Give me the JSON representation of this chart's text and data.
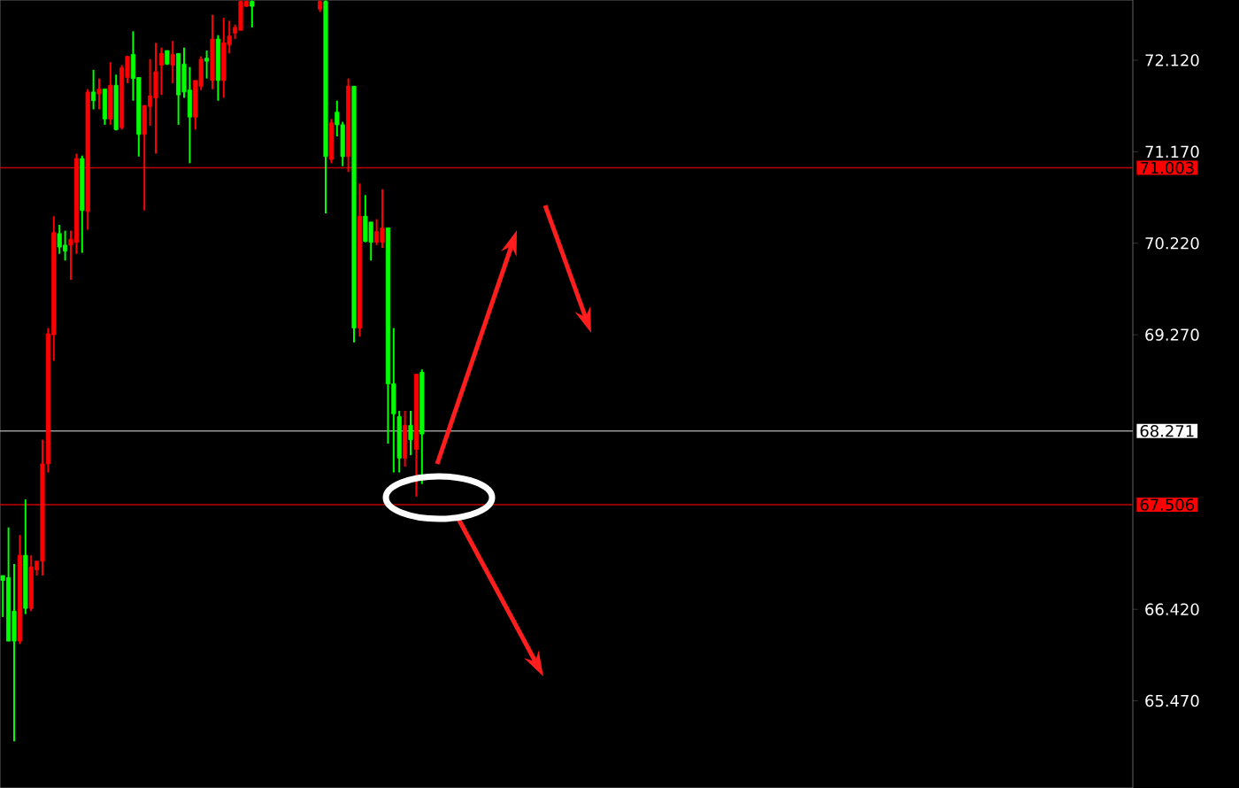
{
  "chart_data": {
    "type": "candlestick",
    "categories": [
      null,
      null,
      null,
      null,
      null,
      null,
      null,
      null,
      null,
      null,
      null,
      null,
      null,
      null,
      null,
      null,
      null,
      null,
      null,
      null,
      null,
      null,
      null,
      null,
      null,
      null,
      null,
      null,
      null,
      null,
      null,
      null,
      null,
      null,
      null,
      null,
      null,
      null,
      null,
      null,
      null,
      null,
      null,
      null,
      null,
      null,
      null,
      null,
      null,
      null,
      null,
      null,
      null,
      null,
      null,
      null,
      null,
      null,
      null,
      null,
      null,
      null,
      null,
      null,
      null,
      null,
      null,
      null,
      null,
      null,
      null,
      null,
      null,
      null,
      null,
      null,
      null,
      null,
      null,
      null,
      null,
      null,
      null,
      null,
      null,
      null,
      null,
      null,
      null,
      null,
      null,
      null,
      null,
      null,
      null,
      null,
      null,
      null,
      null,
      null,
      null,
      null,
      null,
      null,
      null,
      null,
      null,
      null,
      null,
      null,
      null,
      null,
      null,
      null,
      null,
      null,
      null,
      null,
      null,
      null,
      null,
      null,
      null,
      null,
      null,
      null,
      null,
      null,
      null,
      null,
      null,
      null,
      null,
      null,
      null,
      null,
      null,
      null,
      null,
      null,
      null,
      null,
      null,
      null,
      null,
      null,
      null,
      null,
      null,
      null,
      null,
      null,
      null,
      null,
      null,
      null,
      null,
      null,
      null,
      null,
      null,
      null,
      null,
      null,
      null,
      null,
      null,
      null,
      null,
      null,
      null,
      null,
      null,
      null,
      null,
      null,
      null,
      null,
      null,
      null,
      null,
      null,
      null,
      null,
      null,
      null,
      null,
      null,
      null,
      null,
      null,
      null,
      null,
      null,
      null,
      null,
      null,
      null,
      null,
      null
    ],
    "ohlc": [
      [
        66.77,
        66.77,
        66.34,
        66.72
      ],
      [
        66.75,
        67.27,
        66.09,
        66.09
      ],
      [
        66.4,
        66.89,
        65.05,
        66.09
      ],
      [
        66.09,
        67.19,
        66.06,
        66.98
      ],
      [
        66.98,
        67.56,
        66.37,
        66.43
      ],
      [
        66.43,
        66.98,
        66.4,
        66.86
      ],
      [
        66.83,
        66.92,
        66.77,
        66.92
      ],
      [
        66.92,
        68.18,
        66.77,
        67.93
      ],
      [
        67.93,
        69.34,
        67.84,
        69.28
      ],
      [
        69.27,
        70.5,
        69.0,
        70.33
      ],
      [
        70.32,
        70.41,
        70.11,
        70.18
      ],
      [
        70.2,
        70.35,
        70.04,
        70.14
      ],
      [
        70.2,
        70.35,
        69.84,
        70.26
      ],
      [
        70.23,
        71.15,
        70.11,
        71.1
      ],
      [
        71.1,
        71.13,
        70.12,
        70.56
      ],
      [
        70.55,
        71.82,
        70.36,
        71.79
      ],
      [
        71.79,
        72.02,
        71.61,
        71.7
      ],
      [
        71.77,
        71.93,
        71.61,
        71.82
      ],
      [
        71.82,
        71.82,
        71.45,
        71.51
      ],
      [
        71.51,
        72.1,
        71.45,
        71.86
      ],
      [
        71.86,
        71.97,
        71.39,
        71.4
      ],
      [
        71.42,
        72.07,
        71.4,
        72.04
      ],
      [
        71.94,
        72.16,
        71.88,
        72.16
      ],
      [
        72.18,
        72.42,
        71.7,
        71.93
      ],
      [
        71.94,
        71.94,
        71.12,
        71.35
      ],
      [
        71.35,
        71.65,
        70.56,
        71.65
      ],
      [
        71.64,
        72.13,
        71.44,
        71.75
      ],
      [
        71.73,
        72.3,
        71.15,
        72.0
      ],
      [
        72.07,
        72.25,
        71.76,
        72.19
      ],
      [
        72.22,
        72.22,
        72.07,
        72.08
      ],
      [
        72.07,
        72.32,
        71.88,
        72.18
      ],
      [
        72.19,
        72.19,
        71.45,
        71.76
      ],
      [
        72.08,
        72.25,
        71.73,
        71.79
      ],
      [
        71.81,
        72.05,
        71.05,
        71.53
      ],
      [
        71.53,
        71.91,
        71.4,
        71.91
      ],
      [
        71.85,
        72.16,
        71.81,
        72.13
      ],
      [
        72.14,
        72.22,
        71.93,
        72.11
      ],
      [
        71.91,
        72.59,
        71.82,
        72.34
      ],
      [
        72.34,
        72.38,
        71.7,
        71.91
      ],
      [
        71.91,
        72.56,
        71.73,
        72.3
      ],
      [
        72.28,
        72.53,
        72.19,
        72.37
      ],
      [
        72.4,
        72.49,
        72.34,
        72.46
      ],
      [
        72.43,
        72.74,
        72.43,
        72.73
      ],
      [
        72.68,
        72.74,
        72.67,
        72.73
      ],
      [
        72.73,
        72.74,
        72.46,
        72.68
      ],
      null,
      null,
      null,
      null,
      null,
      null,
      null,
      null,
      null,
      null,
      null,
      [
        72.65,
        72.74,
        72.62,
        72.73
      ],
      [
        72.73,
        72.74,
        70.53,
        71.12
      ],
      [
        71.09,
        71.51,
        71.05,
        71.47
      ],
      [
        71.58,
        71.7,
        71.33,
        71.45
      ],
      [
        71.45,
        71.48,
        71.02,
        71.12
      ],
      [
        71.12,
        71.93,
        70.96,
        71.85
      ],
      [
        71.85,
        71.85,
        69.19,
        69.34
      ],
      [
        69.34,
        70.84,
        69.25,
        70.5
      ],
      [
        70.5,
        70.72,
        70.23,
        70.24
      ],
      [
        70.44,
        70.44,
        70.04,
        70.23
      ],
      [
        70.23,
        70.47,
        70.2,
        70.34
      ],
      [
        70.23,
        70.78,
        70.17,
        70.38
      ],
      [
        70.38,
        70.38,
        68.14,
        68.76
      ],
      [
        68.76,
        69.34,
        67.84,
        68.45
      ],
      [
        68.42,
        68.48,
        67.84,
        67.99
      ],
      [
        67.99,
        68.48,
        67.9,
        68.33
      ],
      [
        68.33,
        68.48,
        68.02,
        68.18
      ],
      [
        68.08,
        68.86,
        67.59,
        68.86
      ],
      [
        68.88,
        68.91,
        67.72,
        68.24
      ],
      null,
      null,
      null,
      null,
      null,
      null,
      null,
      null,
      null,
      null,
      null,
      null,
      null,
      null,
      null,
      null,
      null,
      null,
      null,
      null,
      null,
      null,
      null,
      null,
      null,
      null,
      null,
      null,
      null,
      null,
      null,
      null,
      null,
      null,
      null,
      null,
      null,
      null,
      null,
      null,
      null,
      null,
      null,
      null,
      null,
      null,
      null,
      null,
      null,
      null,
      null,
      null,
      null,
      null,
      null,
      null,
      null,
      null,
      null,
      null,
      null,
      null,
      null,
      null,
      null,
      null,
      null,
      null,
      null,
      null,
      null,
      null,
      null,
      null,
      null,
      null,
      null,
      null,
      null,
      null,
      null,
      null,
      null,
      null,
      null,
      null,
      null,
      null,
      null,
      null,
      null,
      null,
      null,
      null,
      null,
      null,
      null,
      null,
      null,
      null,
      null,
      null,
      null,
      null,
      null,
      null,
      null,
      null,
      null,
      null,
      null,
      null,
      null,
      null,
      null,
      null,
      null,
      null,
      null,
      null,
      null,
      null,
      null,
      null,
      null
    ],
    "colors": [
      "#00ff00",
      "#00ff00",
      "#00ff00",
      "#ff0000",
      "#00ff00",
      "#ff0000",
      "#ff0000",
      "#ff0000",
      "#ff0000",
      "#ff0000",
      "#00ff00",
      "#00ff00",
      "#ff0000",
      "#ff0000",
      "#00ff00",
      "#ff0000",
      "#00ff00",
      "#ff0000",
      "#00ff00",
      "#ff0000",
      "#00ff00",
      "#ff0000",
      "#ff0000",
      "#00ff00",
      "#00ff00",
      "#ff0000",
      "#ff0000",
      "#ff0000",
      "#ff0000",
      "#00ff00",
      "#ff0000",
      "#00ff00",
      "#00ff00",
      "#00ff00",
      "#ff0000",
      "#ff0000",
      "#00ff00",
      "#ff0000",
      "#00ff00",
      "#ff0000",
      "#ff0000",
      "#ff0000",
      "#ff0000",
      "#ff0000",
      "#00ff00",
      null,
      null,
      null,
      null,
      null,
      null,
      null,
      null,
      null,
      null,
      null,
      "#ff0000",
      "#00ff00",
      "#ff0000",
      "#00ff00",
      "#00ff00",
      "#ff0000",
      "#00ff00",
      "#ff0000",
      "#00ff00",
      "#00ff00",
      "#ff0000",
      "#ff0000",
      "#00ff00",
      "#00ff00",
      "#00ff00",
      "#ff0000",
      "#00ff00",
      "#ff0000",
      "#00ff00",
      null,
      null,
      null,
      null,
      null,
      null,
      null,
      null,
      null,
      null,
      null,
      null,
      null,
      null,
      null,
      null,
      null,
      null,
      null,
      null,
      null,
      null,
      null,
      null,
      null,
      null,
      null,
      null,
      null,
      null,
      null,
      null,
      null,
      null,
      null,
      null,
      null,
      null,
      null,
      null,
      null,
      null,
      null,
      null,
      null,
      null,
      null,
      null,
      null,
      null,
      null,
      null,
      null,
      null,
      null,
      null,
      null,
      null,
      null,
      null,
      null,
      null,
      null,
      null,
      null,
      null,
      null,
      null,
      null,
      null,
      null,
      null,
      null,
      null,
      null,
      null,
      null,
      null,
      null,
      null,
      null,
      null,
      null,
      null,
      null,
      null,
      null,
      null,
      null,
      null,
      null,
      null,
      null,
      null,
      null,
      null,
      null,
      null,
      null,
      null,
      null,
      null,
      null,
      null,
      null,
      null,
      null,
      null,
      null,
      null,
      null,
      null,
      null,
      null,
      null,
      null,
      null,
      null,
      null,
      null,
      null,
      null,
      null,
      null,
      null
    ],
    "ylim": [
      64.565,
      72.745
    ],
    "yticks": [
      {
        "value": 72.12,
        "label": "72.120"
      },
      {
        "value": 71.17,
        "label": "71.170"
      },
      {
        "value": 70.22,
        "label": "70.220"
      },
      {
        "value": 69.27,
        "label": "69.270"
      },
      {
        "value": 66.42,
        "label": "66.420"
      },
      {
        "value": 65.47,
        "label": "65.470"
      }
    ],
    "tick_labels": "y",
    "ref_lines": [
      {
        "axis": "y",
        "value": 71.003,
        "label": "71.003",
        "color": "#c00000"
      },
      {
        "axis": "y",
        "value": 68.271,
        "label": "68.271",
        "color": "#9a9a9a"
      },
      {
        "axis": "y",
        "value": 67.506,
        "label": "67.506",
        "color": "#c00000"
      }
    ]
  }
}
